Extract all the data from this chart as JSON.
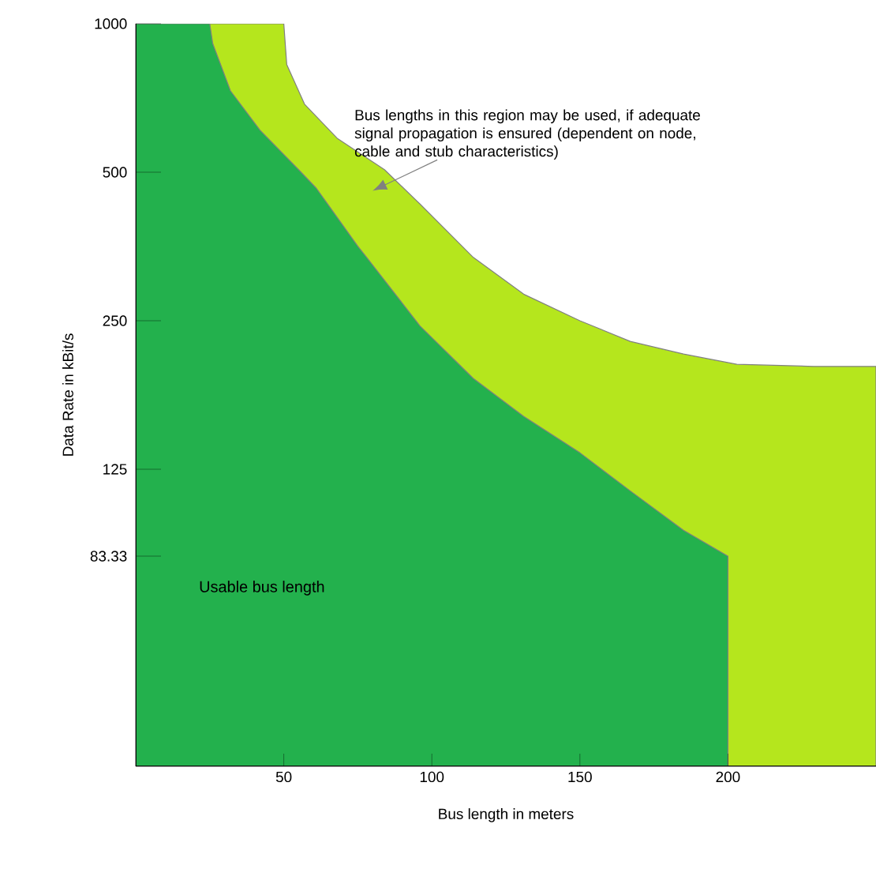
{
  "chart_data": {
    "type": "area",
    "xlabel": "Bus length in meters",
    "ylabel": "Data Rate in kBit/s",
    "xlim": [
      0,
      250
    ],
    "ylim": [
      31.25,
      1000
    ],
    "log": "y",
    "xticks": [
      50,
      100,
      150,
      200
    ],
    "yticks": [
      1000,
      500,
      250,
      125,
      83.33
    ],
    "series": [
      {
        "color": "#b5e61d",
        "x": [
          0,
          50,
          51,
          57,
          68,
          84,
          96,
          114,
          131,
          150,
          167,
          185,
          203,
          229,
          250
        ],
        "values": [
          1000,
          1000,
          826,
          687,
          586,
          506,
          431,
          336,
          283,
          250,
          227,
          214,
          204,
          202,
          202
        ]
      },
      {
        "color": "#23b14d",
        "x": [
          0,
          25,
          26,
          32,
          42,
          55,
          61,
          75,
          78,
          96,
          114,
          131,
          150,
          167,
          185,
          200
        ],
        "values": [
          1000,
          1000,
          912,
          731,
          608,
          506,
          464,
          354,
          336,
          244,
          191,
          160,
          135,
          113,
          94,
          83.33
        ]
      }
    ],
    "annotations": [
      "Bus lengths in this region may be used, if adequate signal propagation is ensured (dependent on node, cable and stub characteristics)",
      "Usable bus length"
    ]
  }
}
